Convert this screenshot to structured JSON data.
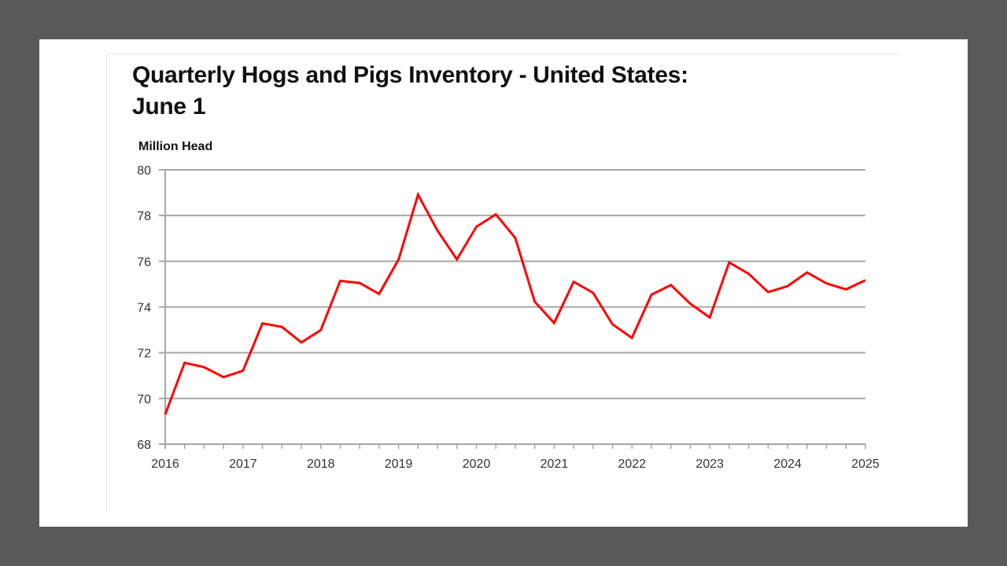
{
  "chart_data": {
    "type": "line",
    "title": "Quarterly Hogs and Pigs Inventory - United States: June 1",
    "title_lines": [
      "Quarterly Hogs and Pigs Inventory - United States:",
      "June 1"
    ],
    "ylabel": "Million Head",
    "xlabel": "",
    "ylim": [
      68,
      80
    ],
    "yticks": [
      68,
      70,
      72,
      74,
      76,
      78,
      80
    ],
    "xlim": [
      2016,
      2025
    ],
    "xticks": [
      2016,
      2017,
      2018,
      2019,
      2020,
      2021,
      2022,
      2023,
      2024,
      2025
    ],
    "grid": "horizontal",
    "line_color": "#ff0000",
    "series": [
      {
        "x": [
          2016.0,
          2016.25,
          2016.5,
          2016.75,
          2017.0,
          2017.25,
          2017.5,
          2017.75,
          2018.0,
          2018.25,
          2018.5,
          2018.75,
          2019.0,
          2019.25,
          2019.5,
          2019.75,
          2020.0,
          2020.25,
          2020.5,
          2020.75,
          2021.0,
          2021.25,
          2021.5,
          2021.75,
          2022.0,
          2022.25,
          2022.5,
          2022.75,
          2023.0,
          2023.25,
          2023.5,
          2023.75,
          2024.0,
          2024.25,
          2024.5,
          2024.75,
          2025.0
        ],
        "values": [
          69.3,
          71.56,
          71.37,
          70.93,
          71.21,
          73.28,
          73.13,
          72.45,
          72.99,
          75.14,
          75.05,
          74.57,
          76.08,
          78.91,
          77.34,
          76.08,
          77.51,
          78.05,
          77.02,
          74.23,
          73.3,
          75.1,
          74.62,
          73.24,
          72.65,
          74.54,
          74.96,
          74.14,
          73.54,
          75.95,
          75.45,
          74.65,
          74.91,
          75.51,
          75.03,
          74.77,
          75.17
        ]
      }
    ]
  }
}
